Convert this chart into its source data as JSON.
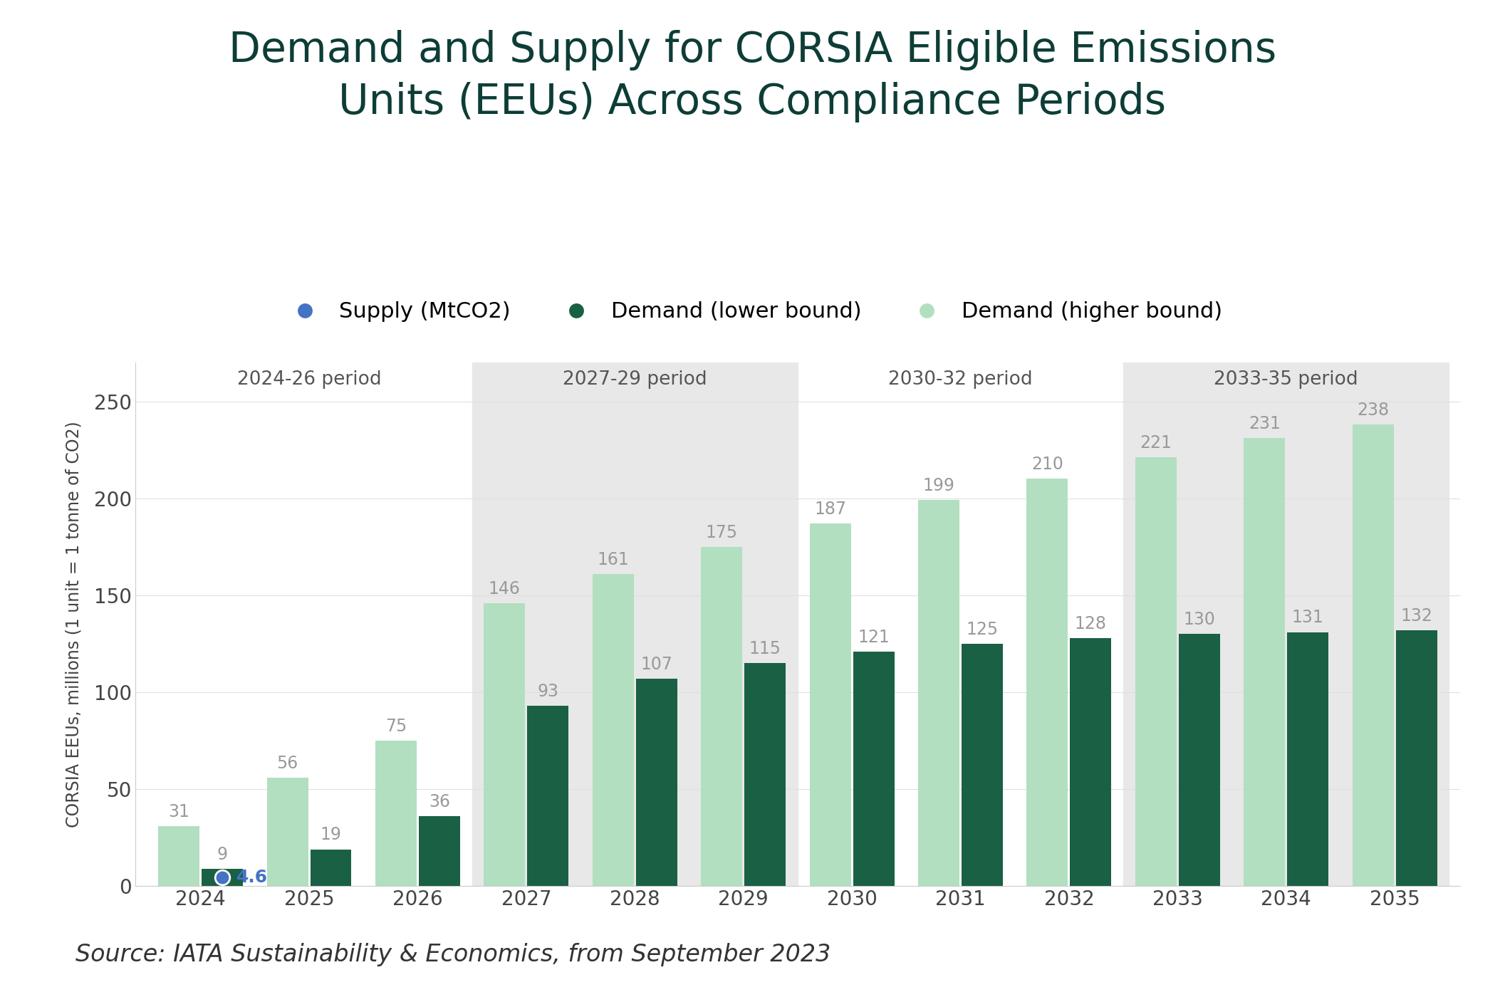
{
  "title": "Demand and Supply for CORSIA Eligible Emissions\nUnits (EEUs) Across Compliance Periods",
  "ylabel": "CORSIA EEUs, millions (1 unit = 1 tonne of CO2)",
  "source": "Source: IATA Sustainability & Economics, from September 2023",
  "years": [
    2024,
    2025,
    2026,
    2027,
    2028,
    2029,
    2030,
    2031,
    2032,
    2033,
    2034,
    2035
  ],
  "demand_lower": [
    9,
    19,
    36,
    93,
    107,
    115,
    121,
    125,
    128,
    130,
    131,
    132
  ],
  "demand_higher": [
    31,
    56,
    75,
    146,
    161,
    175,
    187,
    199,
    210,
    221,
    231,
    238
  ],
  "supply": {
    "year": 2024,
    "value": 4.6
  },
  "color_lower": "#1a6044",
  "color_higher": "#b2dfc0",
  "color_supply": "#4472c4",
  "color_bg_shaded": "#e8e8e8",
  "periods": [
    {
      "label": "2024-26 period",
      "start": 0,
      "end": 2,
      "shaded": false
    },
    {
      "label": "2027-29 period",
      "start": 3,
      "end": 5,
      "shaded": true
    },
    {
      "label": "2030-32 period",
      "start": 6,
      "end": 8,
      "shaded": false
    },
    {
      "label": "2033-35 period",
      "start": 9,
      "end": 11,
      "shaded": true
    }
  ],
  "ylim": [
    0,
    270
  ],
  "yticks": [
    0,
    50,
    100,
    150,
    200,
    250
  ],
  "bar_width": 0.38,
  "title_color": "#0d3d36",
  "title_fontsize": 42,
  "label_fontsize": 17,
  "tick_fontsize": 20,
  "legend_fontsize": 22,
  "period_fontsize": 19,
  "source_fontsize": 24,
  "bar_label_fontsize": 17,
  "bar_label_color": "#999999"
}
